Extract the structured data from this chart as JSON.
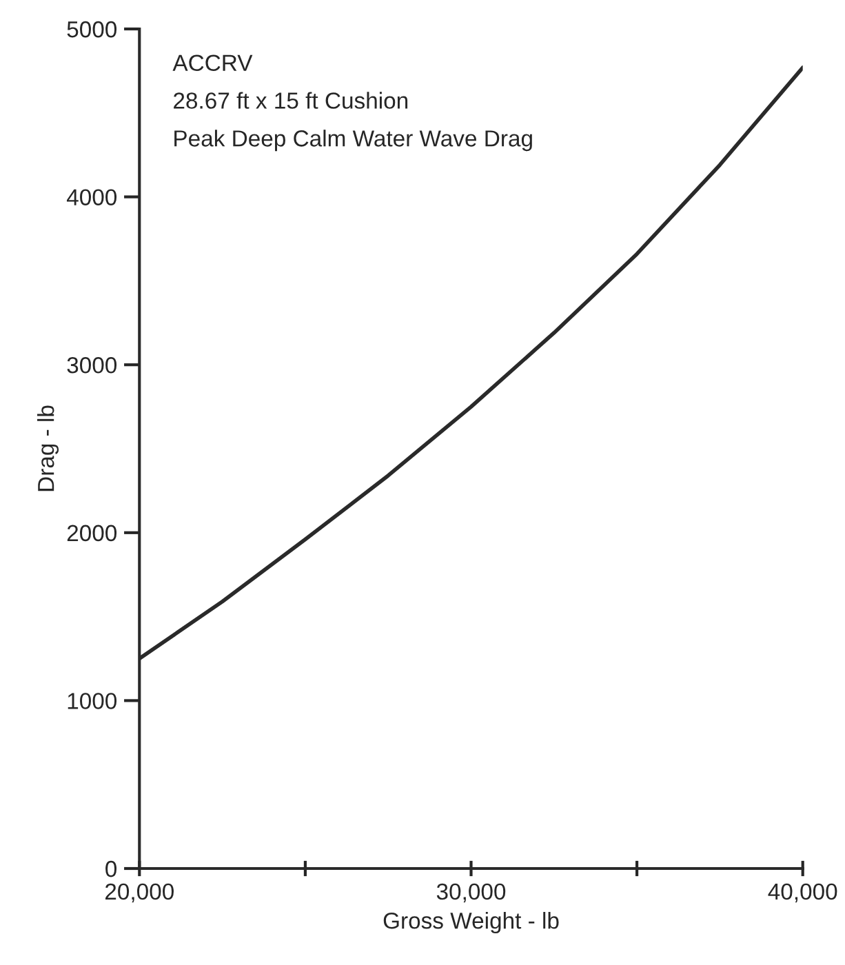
{
  "chart_data": {
    "type": "line",
    "xlabel": "Gross Weight - lb",
    "ylabel": "Drag - lb",
    "annotations": [
      "ACCRV",
      "28.67 ft x 15 ft Cushion",
      "Peak Deep Calm Water Wave Drag"
    ],
    "x": [
      20000,
      22500,
      25000,
      27500,
      30000,
      32500,
      35000,
      37500,
      40000
    ],
    "series": [
      {
        "color": "#2a2a2a",
        "values": [
          1250,
          1590,
          1960,
          2340,
          2750,
          3190,
          3660,
          4190,
          4770
        ]
      }
    ],
    "xlim": [
      20000,
      40000
    ],
    "ylim": [
      0,
      5000
    ],
    "xticks": [
      {
        "value": 20000,
        "label": "20,000"
      },
      {
        "value": 25000,
        "label": null
      },
      {
        "value": 30000,
        "label": "30,000"
      },
      {
        "value": 35000,
        "label": null
      },
      {
        "value": 40000,
        "label": "40,000"
      }
    ],
    "yticks": [
      0,
      1000,
      2000,
      3000,
      4000,
      5000
    ],
    "grid": false,
    "legend": false,
    "marker": "none",
    "line_style": "solid"
  }
}
